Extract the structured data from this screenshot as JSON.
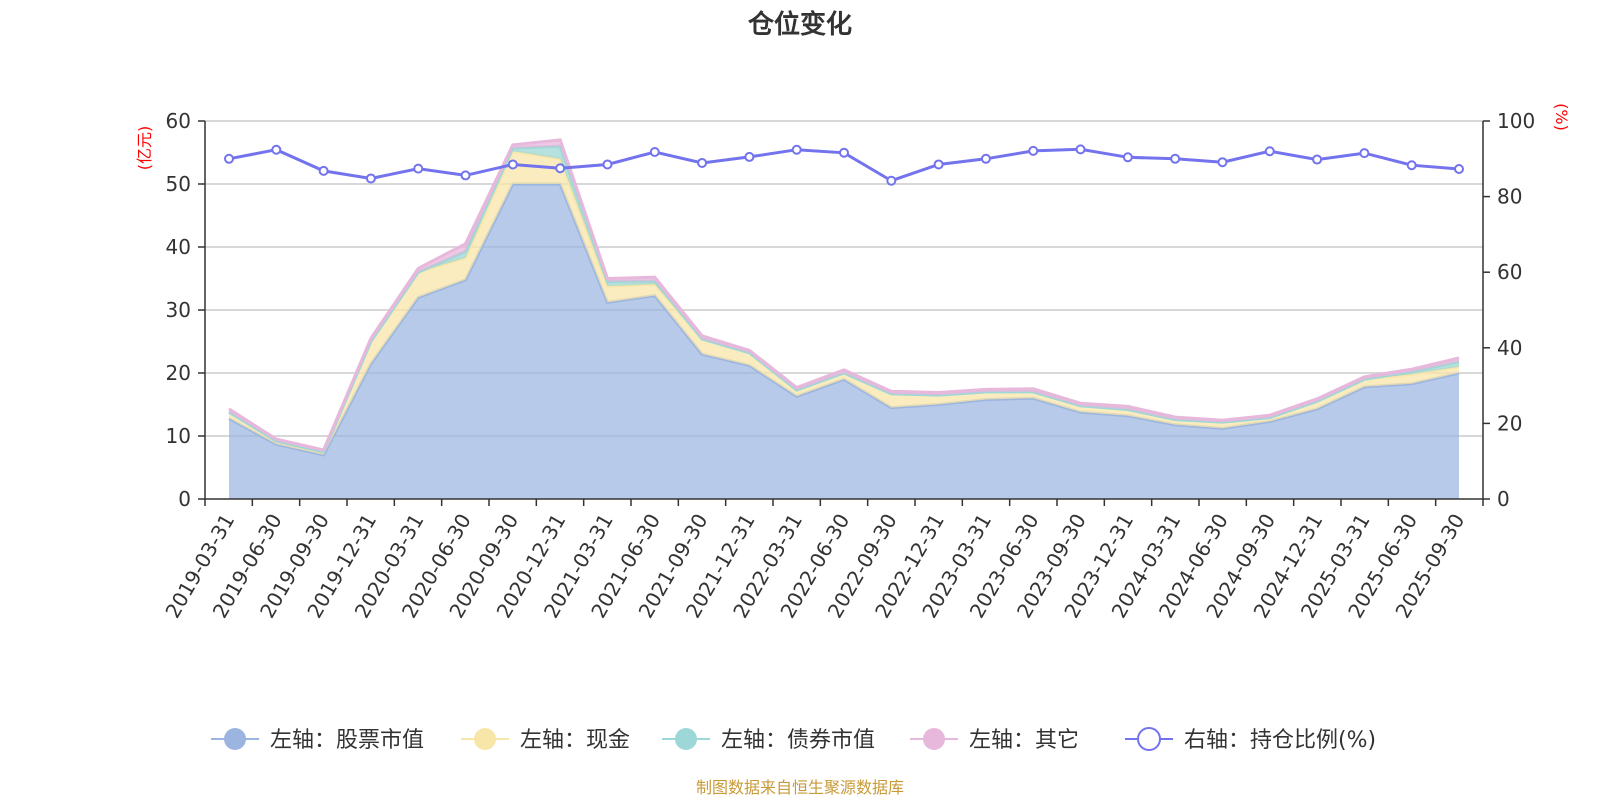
{
  "chart_data": {
    "type": "area",
    "title": "仓位变化",
    "left_unit": "(亿元)",
    "right_unit": "(%)",
    "ylim_left": [
      0,
      60
    ],
    "yticks_left": [
      0,
      10,
      20,
      30,
      40,
      50,
      60
    ],
    "ylim_right": [
      0,
      100
    ],
    "yticks_right": [
      0,
      20,
      40,
      60,
      80,
      100
    ],
    "categories": [
      "2019-03-31",
      "2019-06-30",
      "2019-09-30",
      "2019-12-31",
      "2020-03-31",
      "2020-06-30",
      "2020-09-30",
      "2020-12-31",
      "2021-03-31",
      "2021-06-30",
      "2021-09-30",
      "2021-12-31",
      "2022-03-31",
      "2022-06-30",
      "2022-09-30",
      "2022-12-31",
      "2023-03-31",
      "2023-06-30",
      "2023-09-30",
      "2023-12-31",
      "2024-03-31",
      "2024-06-30",
      "2024-09-30",
      "2024-12-31",
      "2025-03-31",
      "2025-06-30",
      "2025-09-30"
    ],
    "series": [
      {
        "name": "左轴：股票市值",
        "axis": "left",
        "color": "#9bb5e0",
        "values": [
          12.8,
          8.7,
          7.0,
          21.5,
          32.0,
          34.8,
          50.0,
          50.0,
          31.2,
          32.3,
          23.0,
          21.2,
          16.3,
          19.0,
          14.5,
          15.0,
          15.8,
          16.0,
          13.8,
          13.2,
          11.8,
          11.2,
          12.3,
          14.3,
          17.8,
          18.3,
          20.0
        ]
      },
      {
        "name": "左轴：现金",
        "axis": "left",
        "color": "#f8e6a8",
        "values": [
          1.0,
          0.5,
          0.5,
          3.5,
          4.0,
          3.5,
          5.2,
          4.0,
          2.6,
          1.8,
          2.4,
          2.0,
          1.0,
          1.0,
          2.2,
          1.5,
          1.2,
          1.0,
          1.0,
          1.0,
          0.8,
          1.0,
          0.6,
          1.2,
          1.2,
          1.5,
          1.0
        ]
      },
      {
        "name": "左轴：债券市值",
        "axis": "left",
        "color": "#9ed7d7",
        "values": [
          0.0,
          0.0,
          0.0,
          0.0,
          0.0,
          1.0,
          0.5,
          2.0,
          0.7,
          0.5,
          0.0,
          0.0,
          0.0,
          0.0,
          0.0,
          0.0,
          0.0,
          0.0,
          0.0,
          0.0,
          0.0,
          0.0,
          0.0,
          0.0,
          0.0,
          0.4,
          0.8
        ]
      },
      {
        "name": "左轴：其它",
        "axis": "left",
        "color": "#e8b7dc",
        "values": [
          0.5,
          0.3,
          0.3,
          0.5,
          0.6,
          1.2,
          0.5,
          1.0,
          0.5,
          0.6,
          0.5,
          0.4,
          0.4,
          0.5,
          0.4,
          0.4,
          0.4,
          0.5,
          0.4,
          0.5,
          0.4,
          0.3,
          0.4,
          0.4,
          0.4,
          0.4,
          0.6
        ]
      },
      {
        "name": "右轴：持仓比例(%)",
        "axis": "right",
        "color": "#7373ee",
        "values": [
          90.0,
          92.4,
          86.8,
          84.8,
          87.4,
          85.6,
          88.5,
          87.5,
          88.5,
          91.8,
          88.9,
          90.5,
          92.4,
          91.6,
          84.2,
          88.5,
          90.0,
          92.1,
          92.5,
          90.4,
          90.0,
          89.1,
          92.0,
          89.8,
          91.5,
          88.3,
          87.3
        ]
      }
    ],
    "legend_position": "bottom",
    "grid": true
  },
  "source_note": "制图数据来自恒生聚源数据库"
}
